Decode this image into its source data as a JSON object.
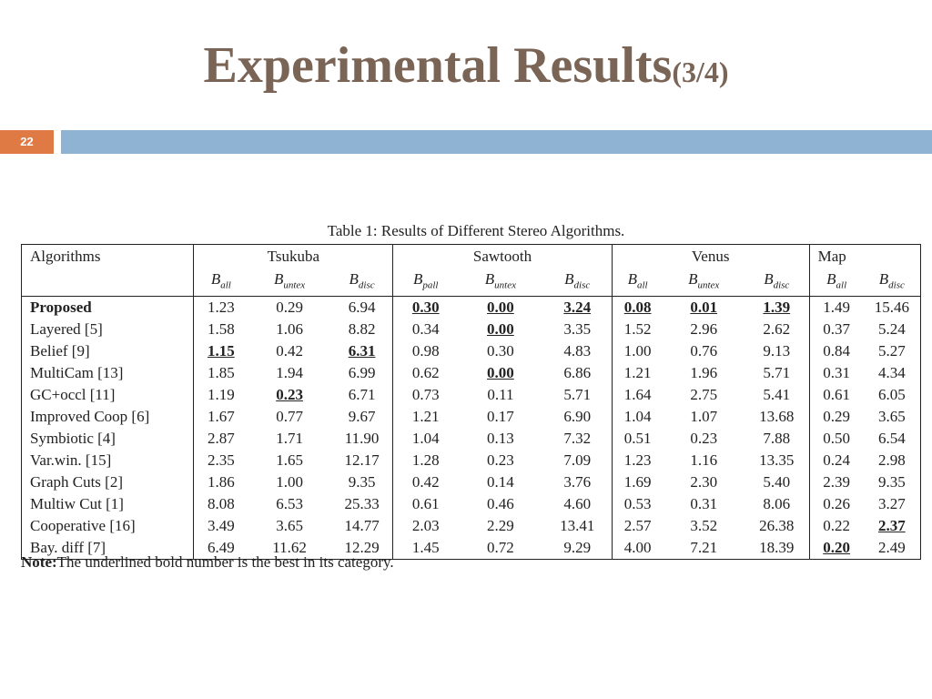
{
  "title": {
    "main": "Experimental Results",
    "sub": "(3/4)"
  },
  "page_number": "22",
  "colors": {
    "title": "#7a6455",
    "badge": "#e07a44",
    "bar": "#8fb4d3"
  },
  "table": {
    "caption": "Table 1: Results of Different Stereo Algorithms.",
    "algo_header": "Algorithms",
    "groups": [
      "Tsukuba",
      "Sawtooth",
      "Venus",
      "Map"
    ],
    "sub_headers": [
      {
        "base": "B",
        "sub": "all"
      },
      {
        "base": "B",
        "sub": "untex"
      },
      {
        "base": "B",
        "sub": "disc"
      },
      {
        "base": "B",
        "sub": "pall"
      },
      {
        "base": "B",
        "sub": "untex"
      },
      {
        "base": "B",
        "sub": "disc"
      },
      {
        "base": "B",
        "sub": "all"
      },
      {
        "base": "B",
        "sub": "untex"
      },
      {
        "base": "B",
        "sub": "disc"
      },
      {
        "base": "B",
        "sub": "all"
      },
      {
        "base": "B",
        "sub": "disc"
      }
    ],
    "rows": [
      {
        "name": "Proposed",
        "values": [
          "1.23",
          "0.29",
          "6.94",
          "0.30",
          "0.00",
          "3.24",
          "0.08",
          "0.01",
          "1.39",
          "1.49",
          "15.46"
        ]
      },
      {
        "name": "Layered [5]",
        "values": [
          "1.58",
          "1.06",
          "8.82",
          "0.34",
          "0.00",
          "3.35",
          "1.52",
          "2.96",
          "2.62",
          "0.37",
          "5.24"
        ]
      },
      {
        "name": "Belief [9]",
        "values": [
          "1.15",
          "0.42",
          "6.31",
          "0.98",
          "0.30",
          "4.83",
          "1.00",
          "0.76",
          "9.13",
          "0.84",
          "5.27"
        ]
      },
      {
        "name": "MultiCam [13]",
        "values": [
          "1.85",
          "1.94",
          "6.99",
          "0.62",
          "0.00",
          "6.86",
          "1.21",
          "1.96",
          "5.71",
          "0.31",
          "4.34"
        ]
      },
      {
        "name": "GC+occl [11]",
        "values": [
          "1.19",
          "0.23",
          "6.71",
          "0.73",
          "0.11",
          "5.71",
          "1.64",
          "2.75",
          "5.41",
          "0.61",
          "6.05"
        ]
      },
      {
        "name": "Improved Coop [6]",
        "values": [
          "1.67",
          "0.77",
          "9.67",
          "1.21",
          "0.17",
          "6.90",
          "1.04",
          "1.07",
          "13.68",
          "0.29",
          "3.65"
        ]
      },
      {
        "name": "Symbiotic [4]",
        "values": [
          "2.87",
          "1.71",
          "11.90",
          "1.04",
          "0.13",
          "7.32",
          "0.51",
          "0.23",
          "7.88",
          "0.50",
          "6.54"
        ]
      },
      {
        "name": "Var.win. [15]",
        "values": [
          "2.35",
          "1.65",
          "12.17",
          "1.28",
          "0.23",
          "7.09",
          "1.23",
          "1.16",
          "13.35",
          "0.24",
          "2.98"
        ]
      },
      {
        "name": "Graph Cuts [2]",
        "values": [
          "1.86",
          "1.00",
          "9.35",
          "0.42",
          "0.14",
          "3.76",
          "1.69",
          "2.30",
          "5.40",
          "2.39",
          "9.35"
        ]
      },
      {
        "name": "Multiw Cut [1]",
        "values": [
          "8.08",
          "6.53",
          "25.33",
          "0.61",
          "0.46",
          "4.60",
          "0.53",
          "0.31",
          "8.06",
          "0.26",
          "3.27"
        ]
      },
      {
        "name": "Cooperative [16]",
        "values": [
          "3.49",
          "3.65",
          "14.77",
          "2.03",
          "2.29",
          "13.41",
          "2.57",
          "3.52",
          "26.38",
          "0.22",
          "2.37"
        ]
      },
      {
        "name": "Bay. diff [7]",
        "values": [
          "6.49",
          "11.62",
          "12.29",
          "1.45",
          "0.72",
          "9.29",
          "4.00",
          "7.21",
          "18.39",
          "0.20",
          "2.49"
        ]
      }
    ],
    "best_cells": [
      [
        0,
        3
      ],
      [
        0,
        4
      ],
      [
        0,
        5
      ],
      [
        0,
        6
      ],
      [
        0,
        7
      ],
      [
        0,
        8
      ],
      [
        1,
        4
      ],
      [
        2,
        0
      ],
      [
        2,
        2
      ],
      [
        3,
        4
      ],
      [
        4,
        1
      ],
      [
        10,
        10
      ],
      [
        11,
        9
      ]
    ],
    "bold_rows": [
      0
    ]
  },
  "note": {
    "label": "Note:",
    "text": "The underlined bold number is the best in its category."
  }
}
